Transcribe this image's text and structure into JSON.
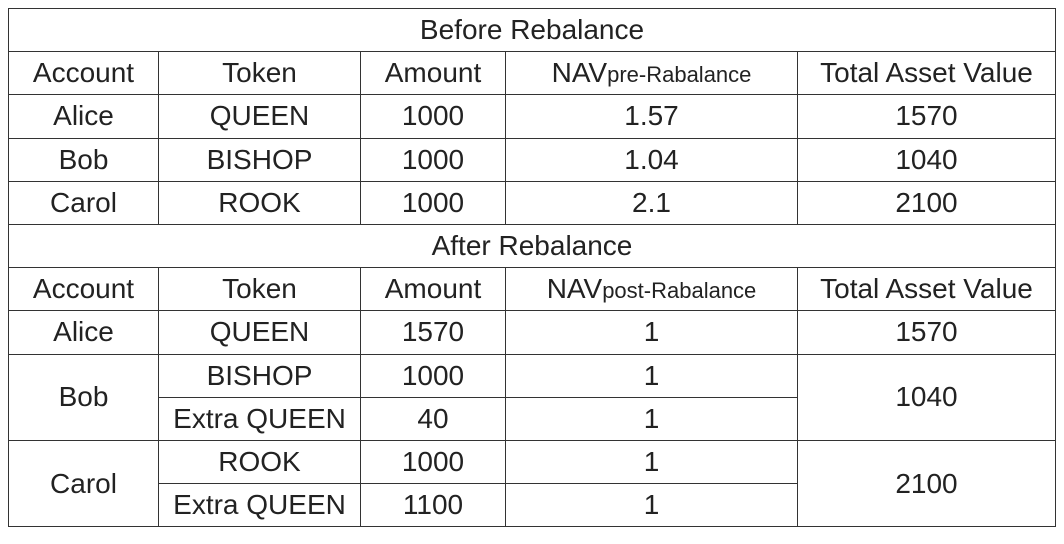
{
  "sections": [
    {
      "title": "Before Rebalance",
      "header": {
        "account": "Account",
        "token": "Token",
        "amount": "Amount",
        "nav": "NAV",
        "nav_sub": "pre-Rabalance",
        "total": "Total Asset Value"
      },
      "groups": [
        {
          "account": "Alice",
          "total": "1570",
          "rows": [
            {
              "token": "QUEEN",
              "amount": "1000",
              "nav": "1.57"
            }
          ]
        },
        {
          "account": "Bob",
          "total": "1040",
          "rows": [
            {
              "token": "BISHOP",
              "amount": "1000",
              "nav": "1.04"
            }
          ]
        },
        {
          "account": "Carol",
          "total": "2100",
          "rows": [
            {
              "token": "ROOK",
              "amount": "1000",
              "nav": "2.1"
            }
          ]
        }
      ]
    },
    {
      "title": "After Rebalance",
      "header": {
        "account": "Account",
        "token": "Token",
        "amount": "Amount",
        "nav": "NAV",
        "nav_sub": "post-Rabalance",
        "total": "Total Asset Value"
      },
      "groups": [
        {
          "account": "Alice",
          "total": "1570",
          "rows": [
            {
              "token": "QUEEN",
              "amount": "1570",
              "nav": "1"
            }
          ]
        },
        {
          "account": "Bob",
          "total": "1040",
          "rows": [
            {
              "token": "BISHOP",
              "amount": "1000",
              "nav": "1"
            },
            {
              "token": "Extra QUEEN",
              "amount": "40",
              "nav": "1"
            }
          ]
        },
        {
          "account": "Carol",
          "total": "2100",
          "rows": [
            {
              "token": "ROOK",
              "amount": "1000",
              "nav": "1"
            },
            {
              "token": "Extra QUEEN",
              "amount": "1100",
              "nav": "1"
            }
          ]
        }
      ]
    }
  ]
}
